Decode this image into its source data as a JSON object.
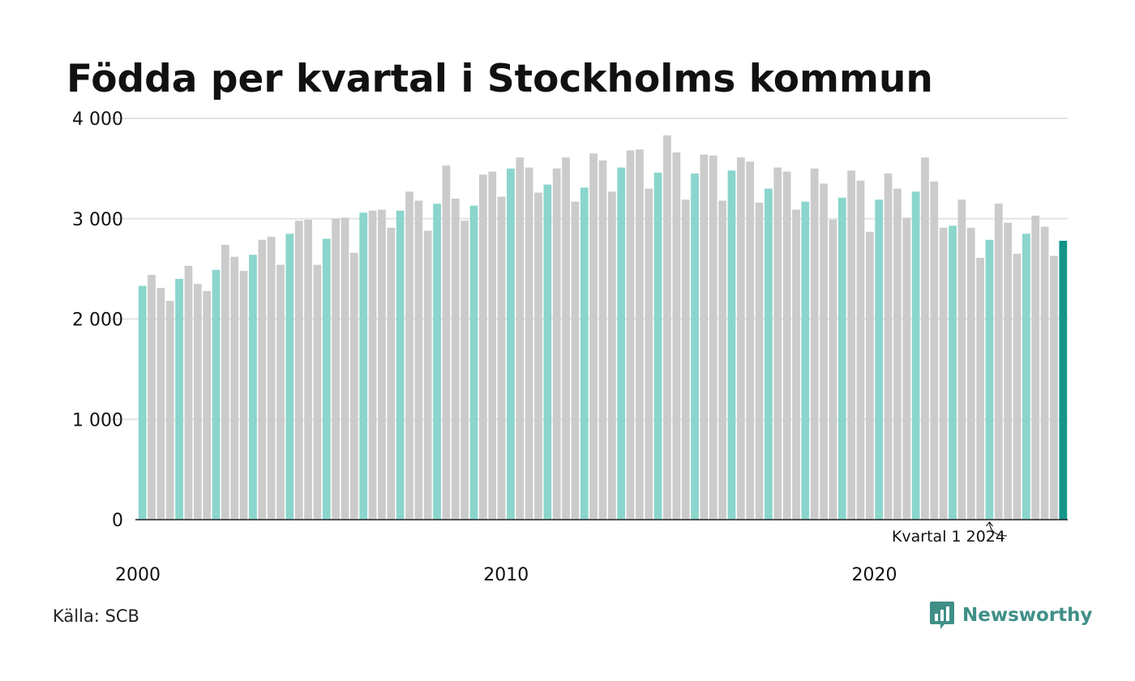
{
  "title": "Födda per kvartal i Stockholms kommun",
  "source": "Källa: SCB",
  "brand": {
    "name": "Newsworthy",
    "icon": "newsworthy-logo-icon"
  },
  "colors": {
    "q1": "#8ad5cc",
    "other": "#cbcbcb",
    "latest": "#13958a",
    "grid": "#e3e3e3",
    "axis": "#222222",
    "text": "#111111"
  },
  "chart_data": {
    "type": "bar",
    "title": "Födda per kvartal i Stockholms kommun",
    "xlabel": "",
    "ylabel": "",
    "ylim": [
      0,
      4000
    ],
    "y_ticks": [
      0,
      1000,
      2000,
      3000,
      4000
    ],
    "y_tick_labels": [
      "0",
      "1 000",
      "2 000",
      "3 000",
      "4 000"
    ],
    "x_tick_labels": [
      "2000",
      "2010",
      "2020"
    ],
    "start_year": 2000,
    "grid": true,
    "annotation": {
      "text": "Kvartal 1 2024",
      "year": 2024,
      "quarter": 1
    },
    "values": [
      2330,
      2440,
      2310,
      2180,
      2400,
      2530,
      2350,
      2280,
      2490,
      2740,
      2620,
      2480,
      2640,
      2790,
      2820,
      2540,
      2850,
      2980,
      2990,
      2540,
      2800,
      3000,
      3010,
      2660,
      3060,
      3080,
      3090,
      2910,
      3080,
      3270,
      3180,
      2880,
      3150,
      3530,
      3200,
      2980,
      3130,
      3440,
      3470,
      3220,
      3500,
      3610,
      3510,
      3260,
      3340,
      3500,
      3610,
      3170,
      3310,
      3650,
      3580,
      3270,
      3510,
      3680,
      3690,
      3300,
      3460,
      3830,
      3660,
      3190,
      3450,
      3640,
      3630,
      3180,
      3480,
      3610,
      3570,
      3160,
      3300,
      3510,
      3470,
      3090,
      3170,
      3500,
      3350,
      2990,
      3210,
      3480,
      3380,
      2870,
      3190,
      3450,
      3300,
      3010,
      3270,
      3610,
      3370,
      2910,
      2930,
      3190,
      2910,
      2610,
      2790,
      3150,
      2960,
      2650,
      2850,
      3030,
      2920,
      2630,
      2780
    ]
  }
}
